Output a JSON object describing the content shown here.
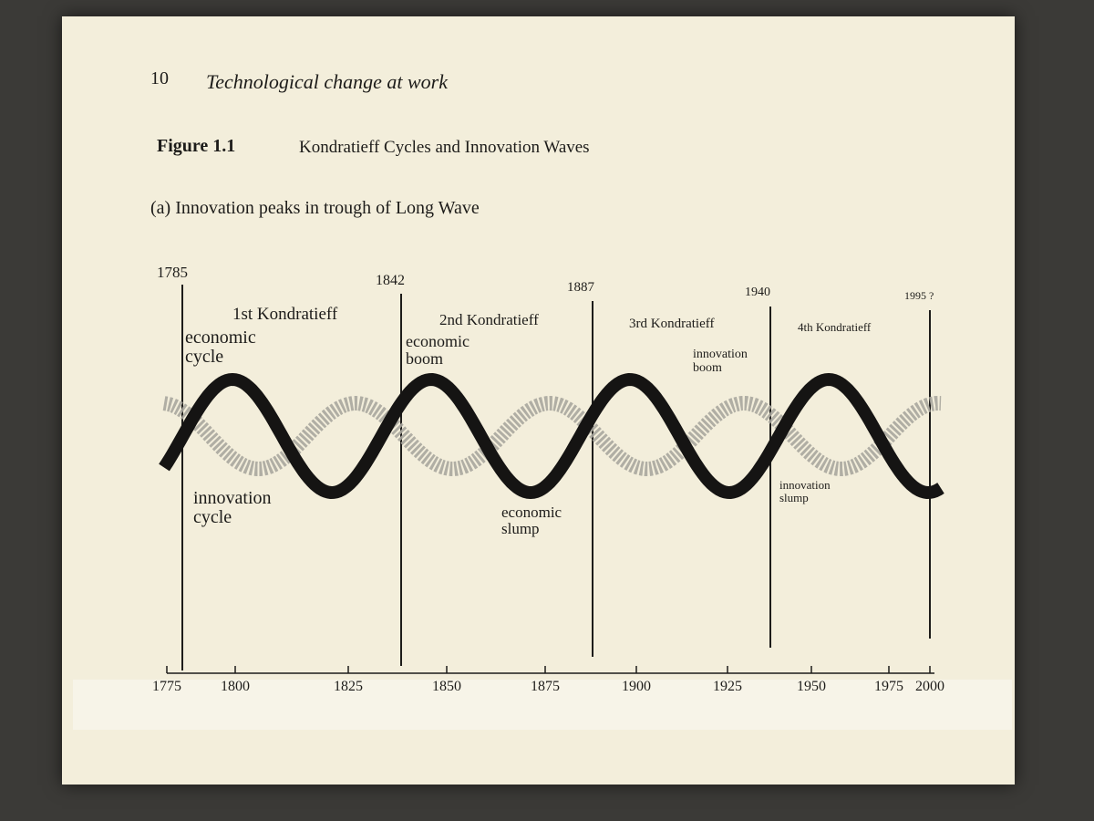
{
  "header": {
    "page_number": "10",
    "running_title": "Technological change at work"
  },
  "figure": {
    "label": "Figure 1.1",
    "title": "Kondratieff Cycles and Innovation Waves",
    "subtitle": "(a) Innovation peaks in trough of Long Wave"
  },
  "boundaries": [
    "1785",
    "1842",
    "1887",
    "1940",
    "1995 ?"
  ],
  "waves": [
    "1st Kondratieff",
    "2nd Kondratieff",
    "3rd Kondratieff",
    "4th Kondratieff"
  ],
  "annotations": [
    "economic cycle",
    "innovation cycle",
    "economic boom",
    "economic slump",
    "innovation boom",
    "innovation slump"
  ],
  "axis_labels": [
    "1775",
    "1800",
    "1825",
    "1850",
    "1875",
    "1900",
    "1925",
    "1950",
    "1975",
    "2000"
  ]
}
